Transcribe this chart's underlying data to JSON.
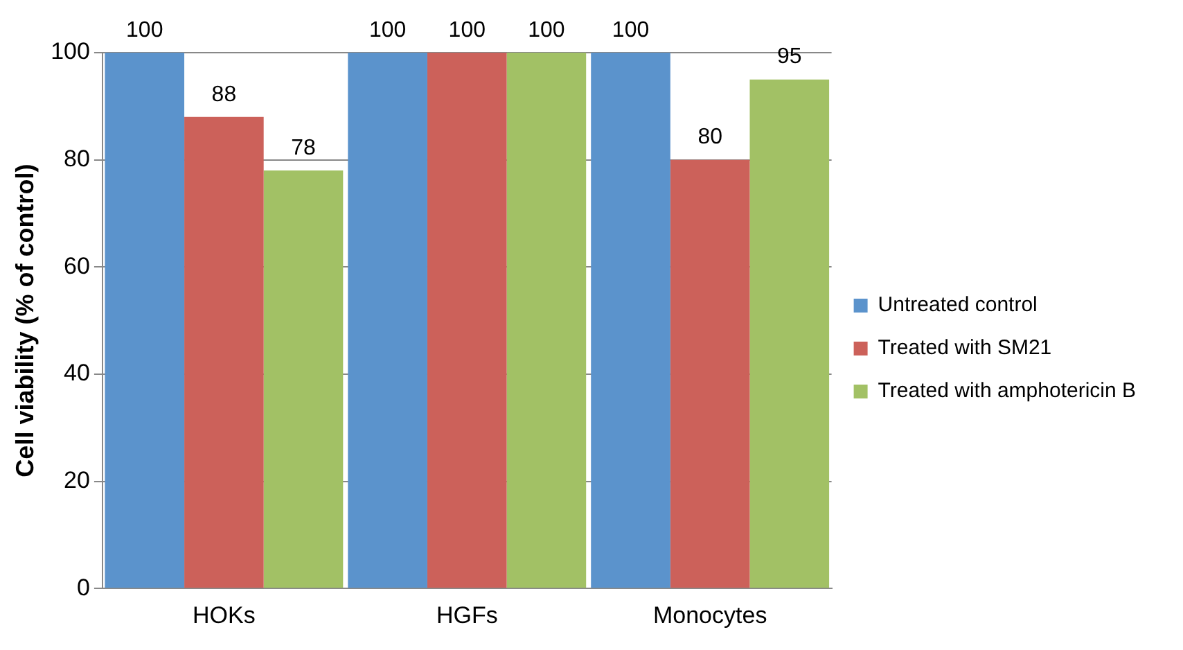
{
  "chart_data": {
    "type": "bar",
    "ylabel": "Cell viability (% of control)",
    "categories": [
      "HOKs",
      "HGFs",
      "Monocytes"
    ],
    "series": [
      {
        "name": "Untreated control",
        "color": "#5b93cc",
        "values": [
          100,
          100,
          100
        ]
      },
      {
        "name": "Treated with SM21",
        "color": "#cc615a",
        "values": [
          88,
          100,
          80
        ]
      },
      {
        "name": "Treated with amphotericin B",
        "color": "#a2c165",
        "values": [
          78,
          100,
          95
        ]
      }
    ],
    "ylim": [
      0,
      100
    ],
    "yticks": [
      0,
      20,
      40,
      60,
      80,
      100
    ],
    "grid": "y",
    "legend": "right",
    "data_labels": true
  }
}
